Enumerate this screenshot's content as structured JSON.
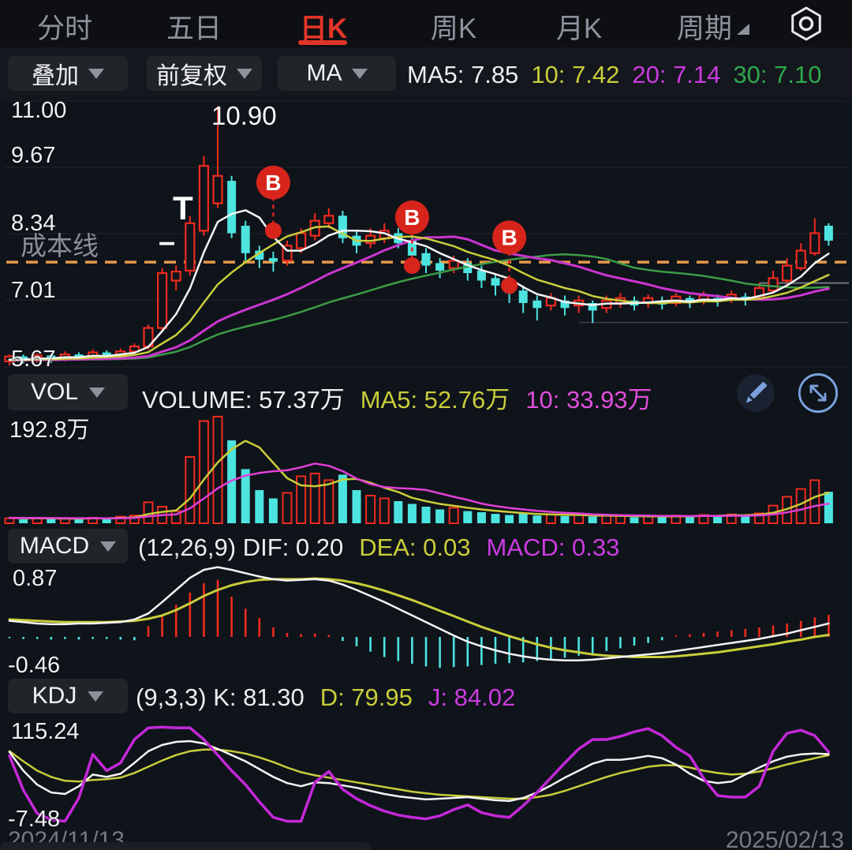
{
  "nav": {
    "items": [
      {
        "label": "分时",
        "active": false
      },
      {
        "label": "五日",
        "active": false
      },
      {
        "label": "日K",
        "active": true
      },
      {
        "label": "周K",
        "active": false
      },
      {
        "label": "月K",
        "active": false
      },
      {
        "label": "周期",
        "active": false
      }
    ]
  },
  "toolbar": {
    "overlay_button": "叠加",
    "adjust_button": "前复权",
    "indicator_button": "MA",
    "ma_readout": [
      {
        "text": "MA5: 7.85"
      },
      {
        "text": "10: 7.42"
      },
      {
        "text": "20: 7.14"
      },
      {
        "text": "30: 7.10"
      }
    ]
  },
  "main_panel": {
    "y_labels": [
      "11.00",
      "9.67",
      "8.34",
      "7.01",
      "5.67"
    ],
    "high_label": "10.90",
    "cost_line_label": "成本线",
    "t_mark": "T",
    "dash_mark": "–"
  },
  "vol_panel": {
    "button": "VOL",
    "volume_text": "VOLUME: 57.37万",
    "ma5_text": "MA5: 52.76万",
    "ma10_text": "10: 33.93万",
    "y_top_label": "192.8万"
  },
  "macd_panel": {
    "button": "MACD",
    "params_dif_text": "(12,26,9) DIF: 0.20",
    "dea_text": "DEA: 0.03",
    "macd_text": "MACD: 0.33",
    "y_top_label": "0.87",
    "y_bottom_label": "-0.46"
  },
  "kdj_panel": {
    "button": "KDJ",
    "params_k_text": "(9,3,3) K: 81.30",
    "d_text": "D: 79.95",
    "j_text": "J: 84.02",
    "y_top_label": "115.24",
    "y_bottom_label": "-7.48"
  },
  "dates": {
    "start": "2024/11/13",
    "end": "2025/02/13"
  },
  "colors": {
    "up": "#ef2b1e",
    "down": "#4ce4e0",
    "ma5": "#f5f5f5",
    "ma10": "#c9cd3a",
    "ma20": "#cb36cf",
    "ma30": "#3c9c46",
    "cost_line": "#e79a4a",
    "buy_marker": "#d8251c",
    "accent_red": "#e23528",
    "icon_blue": "#7aa0dc"
  },
  "chart_data": {
    "type": "candlestick",
    "title": "日K (daily K-line) with MA overlay, VOL, MACD(12,26,9), KDJ(9,3,3)",
    "main_axis": {
      "ticks": [
        11.0,
        9.67,
        8.34,
        7.01,
        5.67
      ],
      "high_annotation": 10.9,
      "cost_price": 7.77
    },
    "buy_marker_label": "B",
    "buy_markers": [
      {
        "index": 19,
        "price": 8.4
      },
      {
        "index": 29,
        "price": 7.7
      },
      {
        "index": 36,
        "price": 7.3
      }
    ],
    "ref_segments": [
      {
        "price": 7.35,
        "from_index": 54,
        "color": "#70757d",
        "width": 2
      },
      {
        "price": 6.56,
        "from_index": 41,
        "color": "#3a3f47",
        "width": 1.5
      }
    ],
    "candles_ohlc_order": [
      "open",
      "close",
      "low",
      "high"
    ],
    "candles": [
      [
        5.78,
        5.88,
        5.7,
        5.92
      ],
      [
        5.88,
        5.8,
        5.74,
        5.92
      ],
      [
        5.8,
        5.9,
        5.76,
        5.95
      ],
      [
        5.9,
        5.82,
        5.75,
        5.93
      ],
      [
        5.82,
        5.92,
        5.78,
        5.98
      ],
      [
        5.92,
        5.86,
        5.8,
        5.96
      ],
      [
        5.86,
        5.96,
        5.82,
        6.02
      ],
      [
        5.96,
        5.88,
        5.82,
        6.0
      ],
      [
        5.88,
        5.98,
        5.84,
        6.04
      ],
      [
        5.98,
        6.08,
        5.92,
        6.14
      ],
      [
        6.08,
        6.45,
        6.02,
        6.52
      ],
      [
        6.45,
        7.55,
        6.4,
        7.65
      ],
      [
        7.4,
        7.58,
        7.2,
        7.7
      ],
      [
        7.6,
        8.55,
        7.5,
        8.7
      ],
      [
        8.4,
        9.7,
        8.3,
        9.9
      ],
      [
        8.95,
        9.5,
        8.85,
        10.9
      ],
      [
        9.4,
        8.35,
        8.25,
        9.5
      ],
      [
        8.5,
        7.95,
        7.8,
        8.6
      ],
      [
        8.0,
        7.82,
        7.65,
        8.1
      ],
      [
        7.85,
        7.78,
        7.58,
        7.98
      ],
      [
        7.8,
        8.1,
        7.7,
        8.2
      ],
      [
        8.05,
        8.35,
        7.95,
        8.45
      ],
      [
        8.3,
        8.6,
        8.2,
        8.75
      ],
      [
        8.55,
        8.7,
        8.45,
        8.85
      ],
      [
        8.7,
        8.25,
        8.15,
        8.8
      ],
      [
        8.3,
        8.1,
        7.95,
        8.4
      ],
      [
        8.15,
        8.3,
        8.05,
        8.45
      ],
      [
        8.25,
        8.4,
        8.15,
        8.55
      ],
      [
        8.35,
        8.15,
        8.05,
        8.45
      ],
      [
        8.2,
        7.9,
        7.75,
        8.3
      ],
      [
        7.95,
        7.7,
        7.55,
        8.05
      ],
      [
        7.75,
        7.6,
        7.45,
        7.85
      ],
      [
        7.65,
        7.8,
        7.55,
        7.9
      ],
      [
        7.75,
        7.55,
        7.4,
        7.85
      ],
      [
        7.6,
        7.4,
        7.25,
        7.7
      ],
      [
        7.45,
        7.3,
        7.1,
        7.55
      ],
      [
        7.35,
        7.15,
        6.95,
        7.45
      ],
      [
        7.2,
        6.95,
        6.75,
        7.3
      ],
      [
        7.0,
        6.85,
        6.6,
        7.1
      ],
      [
        6.9,
        7.05,
        6.8,
        7.15
      ],
      [
        7.0,
        6.85,
        6.7,
        7.1
      ],
      [
        6.9,
        7.0,
        6.75,
        7.1
      ],
      [
        6.95,
        6.8,
        6.55,
        7.0
      ],
      [
        6.85,
        7.0,
        6.75,
        7.1
      ],
      [
        6.95,
        7.05,
        6.85,
        7.15
      ],
      [
        7.0,
        6.9,
        6.8,
        7.08
      ],
      [
        6.95,
        7.05,
        6.85,
        7.12
      ],
      [
        7.0,
        6.92,
        6.82,
        7.08
      ],
      [
        6.95,
        7.08,
        6.88,
        7.15
      ],
      [
        7.05,
        6.95,
        6.85,
        7.1
      ],
      [
        7.0,
        7.1,
        6.92,
        7.18
      ],
      [
        7.05,
        6.98,
        6.88,
        7.12
      ],
      [
        7.02,
        7.12,
        6.95,
        7.2
      ],
      [
        7.08,
        7.0,
        6.9,
        7.15
      ],
      [
        7.05,
        7.25,
        7.0,
        7.35
      ],
      [
        7.2,
        7.45,
        7.15,
        7.6
      ],
      [
        7.4,
        7.7,
        7.35,
        7.85
      ],
      [
        7.65,
        8.0,
        7.6,
        8.15
      ],
      [
        7.95,
        8.35,
        7.9,
        8.65
      ],
      [
        8.5,
        8.2,
        8.1,
        8.55
      ]
    ],
    "ma_prehistory_close": 5.8,
    "volumes_wan": [
      9,
      7,
      10,
      8,
      9,
      8,
      10,
      9,
      12,
      14,
      38,
      30,
      22,
      120,
      185,
      193,
      150,
      98,
      60,
      45,
      55,
      85,
      90,
      78,
      88,
      60,
      50,
      45,
      40,
      35,
      30,
      25,
      28,
      22,
      20,
      17,
      15,
      18,
      14,
      16,
      13,
      15,
      12,
      14,
      13,
      11,
      13,
      12,
      14,
      13,
      15,
      14,
      16,
      15,
      18,
      32,
      48,
      62,
      78,
      57
    ],
    "volume_axis_max_wan": 192.8,
    "vol_ma_prehistory": 10,
    "macd": {
      "dif": [
        0.24,
        0.22,
        0.2,
        0.19,
        0.19,
        0.2,
        0.2,
        0.21,
        0.22,
        0.26,
        0.35,
        0.52,
        0.7,
        0.88,
        1.0,
        1.04,
        1.0,
        0.95,
        0.9,
        0.86,
        0.84,
        0.85,
        0.86,
        0.84,
        0.78,
        0.7,
        0.61,
        0.52,
        0.42,
        0.32,
        0.22,
        0.12,
        0.02,
        -0.07,
        -0.14,
        -0.2,
        -0.25,
        -0.29,
        -0.32,
        -0.34,
        -0.35,
        -0.35,
        -0.34,
        -0.32,
        -0.3,
        -0.28,
        -0.26,
        -0.24,
        -0.21,
        -0.18,
        -0.15,
        -0.12,
        -0.09,
        -0.06,
        -0.03,
        0.01,
        0.05,
        0.1,
        0.15,
        0.2
      ],
      "dea": [
        0.26,
        0.25,
        0.24,
        0.23,
        0.22,
        0.22,
        0.22,
        0.22,
        0.23,
        0.24,
        0.27,
        0.32,
        0.4,
        0.5,
        0.61,
        0.7,
        0.77,
        0.82,
        0.85,
        0.86,
        0.86,
        0.86,
        0.87,
        0.86,
        0.84,
        0.8,
        0.75,
        0.69,
        0.62,
        0.55,
        0.47,
        0.39,
        0.31,
        0.23,
        0.15,
        0.08,
        0.01,
        -0.05,
        -0.11,
        -0.16,
        -0.2,
        -0.23,
        -0.26,
        -0.28,
        -0.29,
        -0.3,
        -0.3,
        -0.3,
        -0.29,
        -0.27,
        -0.25,
        -0.23,
        -0.2,
        -0.17,
        -0.14,
        -0.11,
        -0.07,
        -0.04,
        0.0,
        0.03
      ],
      "hist": [
        -0.02,
        -0.03,
        -0.03,
        -0.04,
        -0.03,
        -0.04,
        -0.03,
        -0.03,
        -0.04,
        -0.05,
        0.16,
        0.3,
        0.48,
        0.66,
        0.8,
        0.85,
        0.6,
        0.42,
        0.28,
        0.14,
        0.06,
        0.04,
        0.05,
        0.03,
        -0.06,
        -0.14,
        -0.22,
        -0.3,
        -0.36,
        -0.4,
        -0.44,
        -0.46,
        -0.45,
        -0.44,
        -0.42,
        -0.4,
        -0.39,
        -0.38,
        -0.36,
        -0.34,
        -0.31,
        -0.28,
        -0.25,
        -0.21,
        -0.17,
        -0.13,
        -0.09,
        -0.05,
        0.02,
        0.04,
        0.06,
        0.08,
        0.1,
        0.12,
        0.14,
        0.17,
        0.2,
        0.24,
        0.29,
        0.33
      ]
    },
    "kdj": {
      "k": [
        84,
        60,
        42,
        32,
        30,
        40,
        55,
        52,
        56,
        70,
        85,
        93,
        97,
        98,
        95,
        88,
        80,
        72,
        62,
        52,
        44,
        40,
        45,
        44,
        41,
        38,
        34,
        30,
        27,
        25,
        23,
        24,
        25,
        26,
        24,
        22,
        21,
        25,
        32,
        41,
        51,
        60,
        69,
        74,
        74,
        76,
        79,
        76,
        68,
        56,
        47,
        44,
        46,
        55,
        64,
        72,
        78,
        81,
        82,
        81.3
      ],
      "d": [
        85,
        72,
        60,
        52,
        47,
        46,
        48,
        49,
        51,
        57,
        65,
        73,
        80,
        85,
        87,
        87,
        85,
        82,
        77,
        71,
        64,
        58,
        54,
        51,
        48,
        45,
        42,
        39,
        36,
        33,
        31,
        29,
        28,
        27,
        26,
        25,
        24,
        24,
        26,
        29,
        34,
        40,
        46,
        52,
        57,
        61,
        65,
        67,
        67,
        64,
        60,
        57,
        55,
        56,
        59,
        63,
        68,
        72,
        76,
        79.95
      ],
      "j": [
        79,
        35,
        5,
        -3,
        -5,
        25,
        81,
        60,
        70,
        100,
        115,
        116,
        115,
        115,
        100,
        80,
        60,
        42,
        20,
        0,
        -5,
        -5,
        45,
        59,
        36,
        24,
        15,
        8,
        3,
        0,
        -2,
        2,
        10,
        16,
        6,
        2,
        0,
        15,
        32,
        51,
        70,
        88,
        100,
        100,
        104,
        110,
        114,
        105,
        90,
        79,
        50,
        28,
        26,
        26,
        40,
        85,
        108,
        112,
        105,
        84
      ]
    }
  }
}
